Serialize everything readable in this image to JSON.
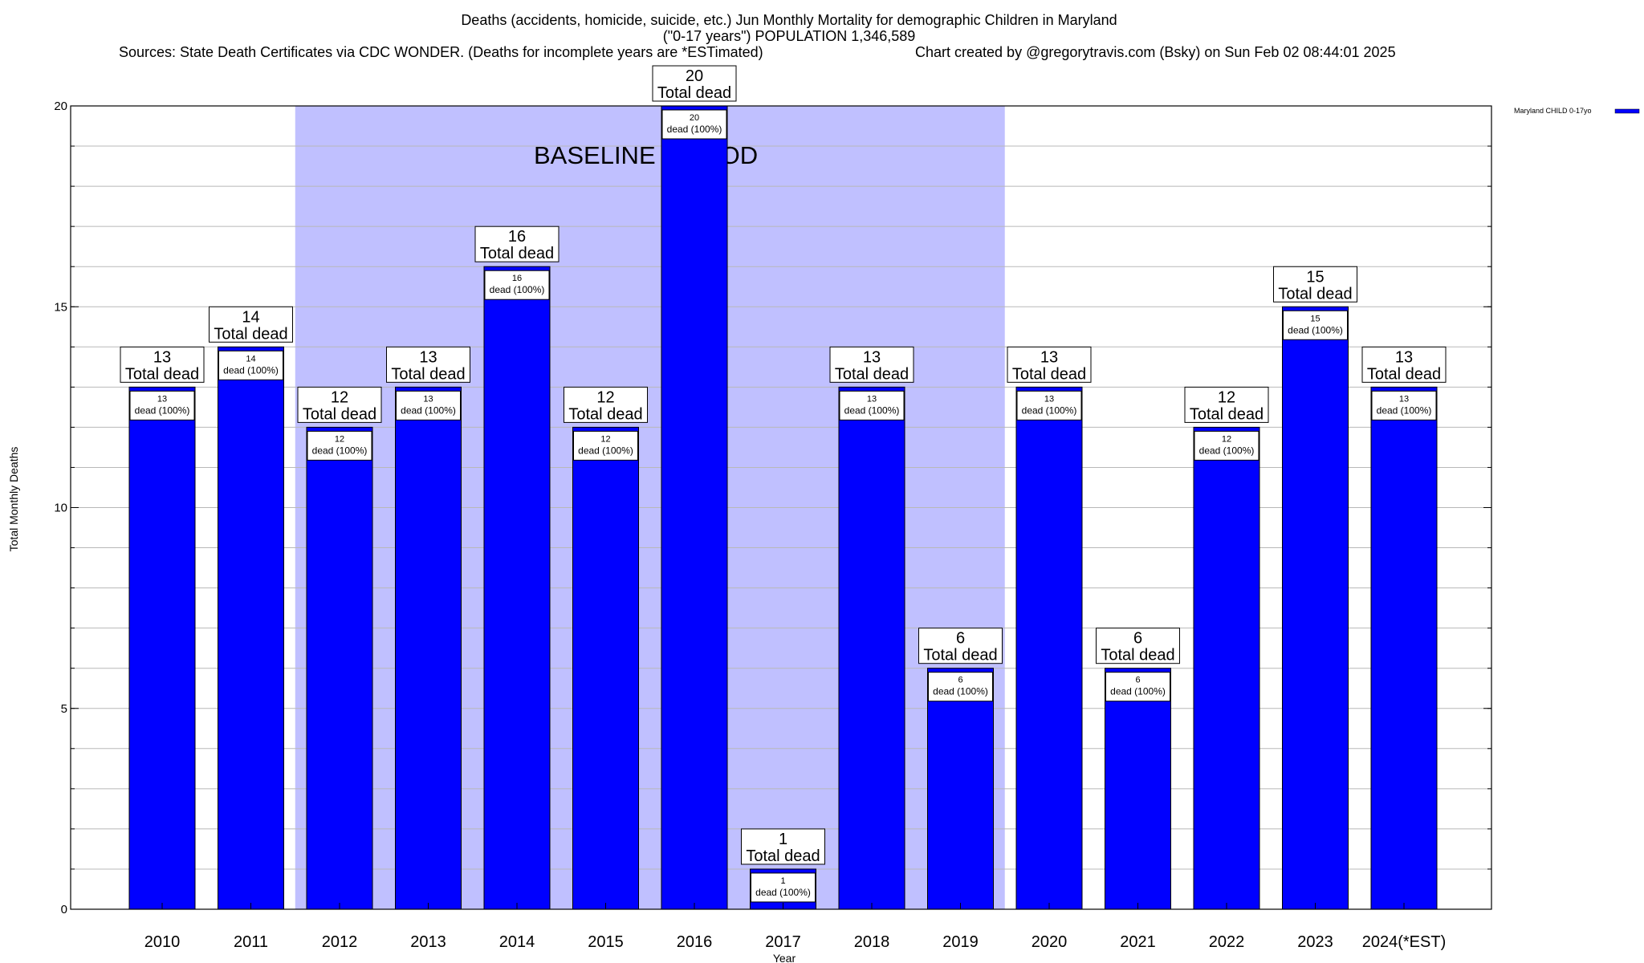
{
  "chart_data": {
    "type": "bar",
    "title_lines": [
      "Deaths (accidents, homicide, suicide, etc.) Jun Monthly Mortality for demographic Children in Maryland",
      "(\"0-17 years\") POPULATION 1,346,589"
    ],
    "sources": "Sources: State Death Certificates via CDC WONDER. (Deaths for incomplete years are *ESTimated)",
    "credit": "Chart created by @gregorytravis.com (Bsky) on Sun Feb 02 08:44:01 2025",
    "xlabel": "Year",
    "ylabel": "Total Monthly Deaths",
    "ylim": [
      0,
      20
    ],
    "yticks": [
      0,
      5,
      10,
      15,
      20
    ],
    "minor_step": 1,
    "categories": [
      "2010",
      "2011",
      "2012",
      "2013",
      "2014",
      "2015",
      "2016",
      "2017",
      "2018",
      "2019",
      "2020",
      "2021",
      "2022",
      "2023",
      "2024(*EST)"
    ],
    "series": [
      {
        "name": "Maryland CHILD 0-17yo",
        "color": "#0000ff",
        "values": [
          13,
          14,
          12,
          13,
          16,
          12,
          20,
          1,
          13,
          6,
          13,
          6,
          12,
          15,
          13
        ]
      }
    ],
    "total_label_suffix": "Total dead",
    "inner_label_suffix": "dead (100%)",
    "baseline": {
      "label": "BASELINE PERIOD",
      "from_category": "2012",
      "to_category": "2019",
      "color": "#c0c0ff"
    },
    "legend_position": "top-right, outside plot"
  }
}
